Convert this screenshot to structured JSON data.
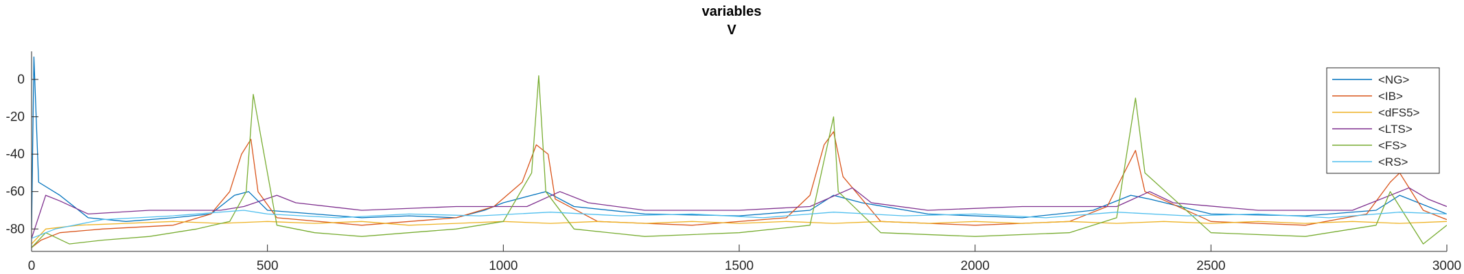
{
  "chart_data": {
    "type": "line",
    "title": "variables",
    "subtitle": "V",
    "xlabel": "",
    "ylabel": "",
    "xlim": [
      0,
      3000
    ],
    "ylim": [
      -92,
      15
    ],
    "xticks": [
      0,
      500,
      1000,
      1500,
      2000,
      2500,
      3000
    ],
    "yticks": [
      0,
      -20,
      -40,
      -60,
      -80
    ],
    "legend_position": "top-right",
    "grid": false,
    "series": [
      {
        "name": "<NG>",
        "color": "#0072BD",
        "x": [
          0,
          5,
          15,
          60,
          120,
          200,
          300,
          380,
          430,
          460,
          500,
          600,
          700,
          800,
          900,
          960,
          1000,
          1060,
          1090,
          1150,
          1300,
          1500,
          1650,
          1700,
          1760,
          1900,
          2100,
          2250,
          2330,
          2370,
          2500,
          2700,
          2850,
          2900,
          3000
        ],
        "y": [
          -80,
          12,
          -55,
          -62,
          -74,
          -76,
          -74,
          -72,
          -62,
          -60,
          -70,
          -72,
          -74,
          -73,
          -74,
          -70,
          -66,
          -62,
          -60,
          -68,
          -72,
          -73,
          -70,
          -62,
          -66,
          -72,
          -74,
          -70,
          -62,
          -64,
          -72,
          -73,
          -70,
          -62,
          -72
        ]
      },
      {
        "name": "<IB>",
        "color": "#D95319",
        "x": [
          0,
          20,
          60,
          150,
          300,
          380,
          420,
          445,
          465,
          480,
          520,
          700,
          900,
          980,
          1040,
          1070,
          1095,
          1110,
          1200,
          1400,
          1600,
          1650,
          1680,
          1700,
          1720,
          1800,
          2000,
          2200,
          2280,
          2320,
          2340,
          2360,
          2500,
          2700,
          2830,
          2880,
          2900,
          2950,
          3000
        ],
        "y": [
          -90,
          -86,
          -82,
          -80,
          -78,
          -72,
          -60,
          -40,
          -32,
          -60,
          -74,
          -78,
          -74,
          -68,
          -55,
          -35,
          -40,
          -64,
          -76,
          -78,
          -74,
          -62,
          -35,
          -28,
          -52,
          -76,
          -78,
          -76,
          -68,
          -48,
          -38,
          -60,
          -76,
          -78,
          -72,
          -55,
          -50,
          -70,
          -75
        ]
      },
      {
        "name": "<dFS5>",
        "color": "#EDB120",
        "x": [
          0,
          30,
          100,
          200,
          300,
          400,
          500,
          600,
          700,
          800,
          900,
          1000,
          1100,
          1200,
          1300,
          1400,
          1500,
          1600,
          1700,
          1800,
          1900,
          2000,
          2100,
          2200,
          2300,
          2400,
          2500,
          2600,
          2700,
          2800,
          2900,
          3000
        ],
        "y": [
          -88,
          -80,
          -78,
          -77,
          -76,
          -77,
          -76,
          -77,
          -76,
          -78,
          -77,
          -76,
          -77,
          -76,
          -77,
          -76,
          -77,
          -76,
          -77,
          -76,
          -77,
          -76,
          -77,
          -76,
          -77,
          -76,
          -77,
          -76,
          -77,
          -76,
          -77,
          -76
        ]
      },
      {
        "name": "<LTS>",
        "color": "#7E2F8E",
        "x": [
          0,
          30,
          60,
          120,
          250,
          400,
          450,
          520,
          560,
          700,
          900,
          1050,
          1120,
          1180,
          1300,
          1500,
          1650,
          1740,
          1780,
          1900,
          2100,
          2300,
          2370,
          2420,
          2600,
          2800,
          2920,
          2960,
          3000
        ],
        "y": [
          -85,
          -62,
          -65,
          -72,
          -70,
          -70,
          -68,
          -62,
          -66,
          -70,
          -68,
          -68,
          -60,
          -66,
          -70,
          -70,
          -68,
          -58,
          -66,
          -70,
          -68,
          -68,
          -60,
          -66,
          -70,
          -70,
          -58,
          -64,
          -68
        ]
      },
      {
        "name": "<FS>",
        "color": "#77AC30",
        "x": [
          0,
          30,
          80,
          150,
          250,
          350,
          420,
          455,
          470,
          520,
          600,
          700,
          800,
          900,
          1000,
          1060,
          1075,
          1090,
          1150,
          1300,
          1500,
          1650,
          1700,
          1710,
          1800,
          2000,
          2200,
          2300,
          2340,
          2360,
          2500,
          2700,
          2850,
          2880,
          2950,
          3000
        ],
        "y": [
          -90,
          -82,
          -88,
          -86,
          -84,
          -80,
          -76,
          -60,
          -8,
          -78,
          -82,
          -84,
          -82,
          -80,
          -76,
          -50,
          2,
          -60,
          -80,
          -84,
          -82,
          -78,
          -20,
          -60,
          -82,
          -84,
          -82,
          -74,
          -10,
          -50,
          -82,
          -84,
          -78,
          -60,
          -88,
          -78
        ]
      },
      {
        "name": "<RS>",
        "color": "#4DBEEE",
        "x": [
          0,
          50,
          150,
          300,
          450,
          500,
          650,
          800,
          950,
          1100,
          1250,
          1400,
          1550,
          1700,
          1850,
          2000,
          2150,
          2300,
          2450,
          2600,
          2750,
          2900,
          3000
        ],
        "y": [
          -85,
          -80,
          -75,
          -73,
          -70,
          -72,
          -74,
          -72,
          -73,
          -71,
          -73,
          -72,
          -74,
          -71,
          -73,
          -72,
          -74,
          -71,
          -73,
          -72,
          -74,
          -71,
          -72
        ]
      }
    ]
  }
}
